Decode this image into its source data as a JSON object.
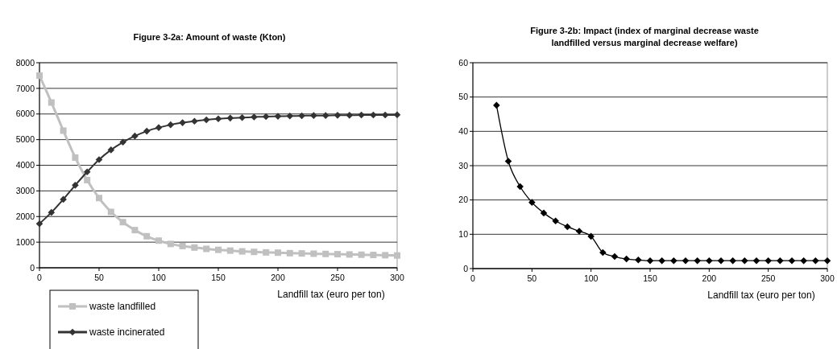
{
  "chart_data": [
    {
      "type": "line",
      "title": "Figure 3-2a: Amount of waste (Kton)",
      "xlabel": "Landfill tax (euro per ton)",
      "x": [
        0,
        10,
        20,
        30,
        40,
        50,
        60,
        70,
        80,
        90,
        100,
        110,
        120,
        130,
        140,
        150,
        160,
        170,
        180,
        190,
        200,
        210,
        220,
        230,
        240,
        250,
        260,
        270,
        280,
        290,
        300
      ],
      "xlim": [
        0,
        300
      ],
      "xticks": [
        0,
        50,
        100,
        150,
        200,
        250,
        300
      ],
      "ylim": [
        0,
        8000
      ],
      "yticks": [
        0,
        1000,
        2000,
        3000,
        4000,
        5000,
        6000,
        7000,
        8000
      ],
      "grid": "y",
      "legend": "bottom left",
      "series": [
        {
          "name": "waste landfilled",
          "color": "#c0c0c0",
          "marker": "square",
          "values": [
            7500,
            6450,
            5350,
            4300,
            3420,
            2720,
            2180,
            1780,
            1470,
            1230,
            1060,
            930,
            850,
            790,
            740,
            700,
            670,
            640,
            620,
            600,
            590,
            570,
            560,
            550,
            540,
            530,
            520,
            510,
            500,
            490,
            480
          ]
        },
        {
          "name": "waste incinerated",
          "color": "#333333",
          "marker": "diamond",
          "values": [
            1720,
            2160,
            2670,
            3220,
            3740,
            4220,
            4600,
            4900,
            5140,
            5330,
            5470,
            5580,
            5660,
            5720,
            5770,
            5810,
            5840,
            5860,
            5880,
            5900,
            5910,
            5920,
            5930,
            5940,
            5940,
            5950,
            5950,
            5960,
            5960,
            5960,
            5970
          ]
        }
      ]
    },
    {
      "type": "line",
      "title": "Figure 3-2b: Impact (index of marginal decrease waste landfilled versus marginal decrease welfare)",
      "xlabel": "Landfill tax (euro per ton)",
      "x": [
        20,
        30,
        40,
        50,
        60,
        70,
        80,
        90,
        100,
        110,
        120,
        130,
        140,
        150,
        160,
        170,
        180,
        190,
        200,
        210,
        220,
        230,
        240,
        250,
        260,
        270,
        280,
        290,
        300
      ],
      "xlim": [
        0,
        300
      ],
      "xticks": [
        0,
        50,
        100,
        150,
        200,
        250,
        300
      ],
      "ylim": [
        0,
        60
      ],
      "yticks": [
        0,
        10,
        20,
        30,
        40,
        50,
        60
      ],
      "grid": "y",
      "series": [
        {
          "color": "#000000",
          "marker": "diamond",
          "values": [
            47.6,
            31.3,
            23.9,
            19.3,
            16.2,
            13.9,
            12.2,
            10.9,
            9.4,
            4.7,
            3.5,
            2.8,
            2.5,
            2.3,
            2.3,
            2.3,
            2.3,
            2.3,
            2.3,
            2.3,
            2.3,
            2.3,
            2.3,
            2.3,
            2.3,
            2.3,
            2.3,
            2.3,
            2.3
          ]
        }
      ]
    }
  ]
}
